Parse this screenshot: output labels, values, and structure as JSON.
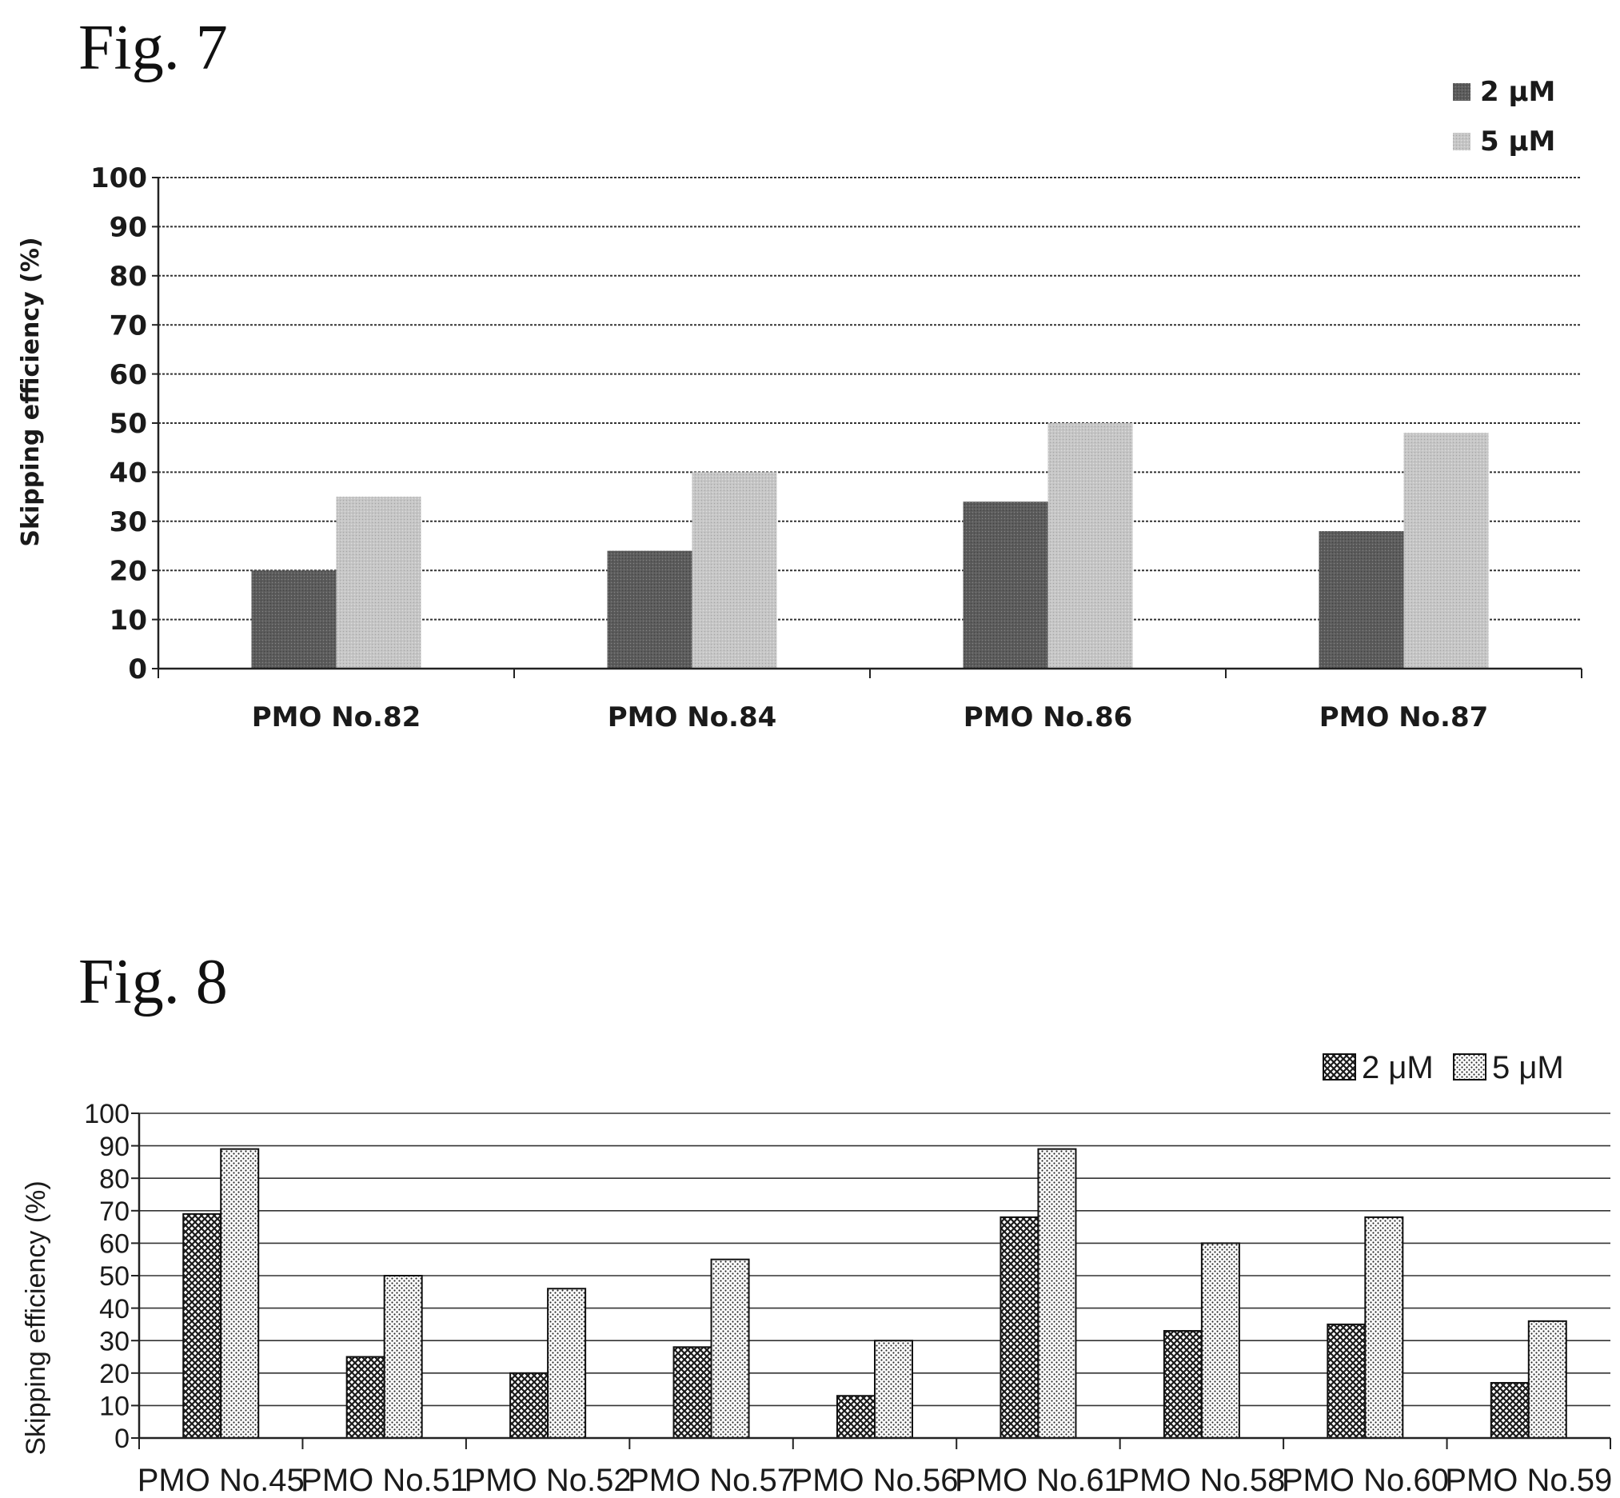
{
  "figures": {
    "fig7": {
      "label": "Fig. 7"
    },
    "fig8": {
      "label": "Fig. 8"
    }
  },
  "colors": {
    "fig7_2uM": "#5c5c5c",
    "fig7_5uM": "#c6c6c6",
    "fig8_2uM": "#3a3a3a",
    "fig8_5uM": "#d9d9d9",
    "gridline": "#333333"
  },
  "chart_data": [
    {
      "type": "bar",
      "title": "",
      "xlabel": "",
      "ylabel": "Skipping efficiency (%)",
      "ylim": [
        0,
        100
      ],
      "yticks": [
        0,
        10,
        20,
        30,
        40,
        50,
        60,
        70,
        80,
        90,
        100
      ],
      "grid": true,
      "legend": "top-right",
      "categories": [
        "PMO No.82",
        "PMO No.84",
        "PMO No.86",
        "PMO No.87"
      ],
      "series": [
        {
          "name": "2 μM",
          "values": [
            20,
            24,
            34,
            28
          ]
        },
        {
          "name": "5 μM",
          "values": [
            35,
            40,
            50,
            48
          ]
        }
      ]
    },
    {
      "type": "bar",
      "title": "",
      "xlabel": "",
      "ylabel": "Skipping efficiency (%)",
      "ylim": [
        0,
        100
      ],
      "yticks": [
        0,
        10,
        20,
        30,
        40,
        50,
        60,
        70,
        80,
        90,
        100
      ],
      "grid": true,
      "legend": "top-right",
      "categories": [
        "PMO No.45",
        "PMO No.51",
        "PMO No.52",
        "PMO No.57",
        "PMO No.56",
        "PMO No.61",
        "PMO No.58",
        "PMO No.60",
        "PMO No.59"
      ],
      "series": [
        {
          "name": "2 μM",
          "values": [
            69,
            25,
            20,
            28,
            13,
            68,
            33,
            35,
            17
          ]
        },
        {
          "name": "5 μM",
          "values": [
            89,
            50,
            46,
            55,
            30,
            89,
            60,
            68,
            36
          ]
        }
      ]
    }
  ]
}
